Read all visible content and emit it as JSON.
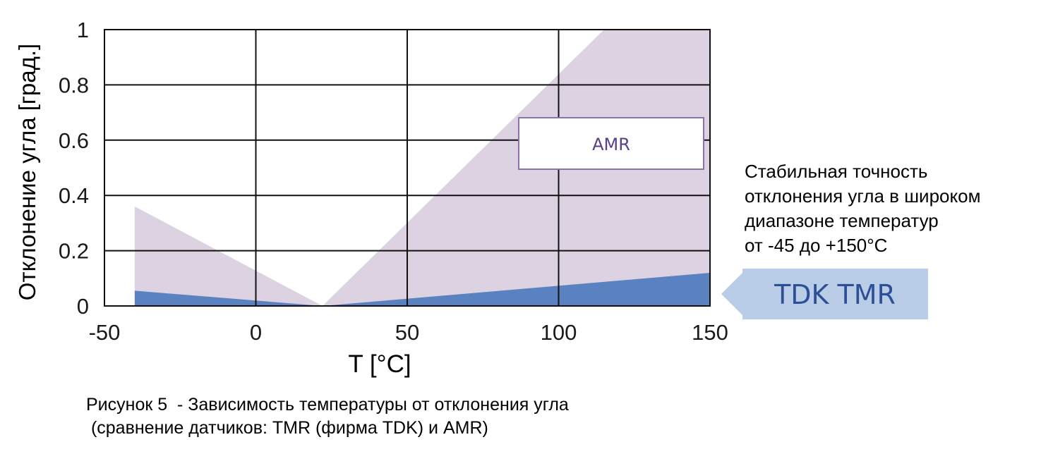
{
  "chart_data": {
    "type": "area",
    "xlabel": "T [°C]",
    "ylabel": "Отклонение угла [град.]",
    "xlim": [
      -50,
      150
    ],
    "ylim": [
      0,
      1
    ],
    "x_ticks": [
      "-50",
      "0",
      "50",
      "100",
      "150"
    ],
    "y_ticks": [
      "0",
      "0.2",
      "0.4",
      "0.6",
      "0.8",
      "1"
    ],
    "grid": true,
    "series": [
      {
        "name": "AMR",
        "color": "#dcd2e2",
        "x": [
          -40,
          22,
          115,
          150,
          150,
          -40
        ],
        "y": [
          0.36,
          0,
          1,
          1,
          0,
          0
        ]
      },
      {
        "name": "TDK TMR",
        "color": "#5b82c0",
        "x": [
          -40,
          22,
          150,
          150,
          -40
        ],
        "y": [
          0.055,
          0,
          0.12,
          0,
          0
        ]
      }
    ],
    "annotations": {
      "amr_label": "AMR",
      "tmr_label": "TDK TMR",
      "tmr_label_bg": "#b9cde6"
    }
  },
  "note": {
    "lines": [
      "Стабильная точность",
      "отклонения угла в широком",
      "диапазоне температур",
      "от -45 до +150°С"
    ]
  },
  "caption": {
    "lines": [
      "Рисунок 5  - Зависимость температуры от отклонения угла",
      " (сравнение датчиков: TMR (фирма TDK) и AMR)"
    ]
  }
}
